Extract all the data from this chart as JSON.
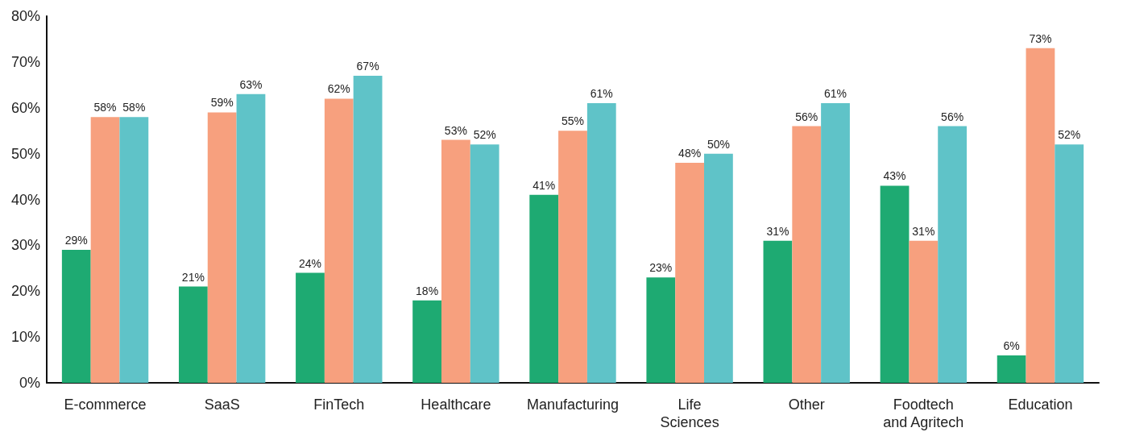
{
  "chart_data": {
    "type": "bar",
    "categories": [
      "E-commerce",
      "SaaS",
      "FinTech",
      "Healthcare",
      "Manufacturing",
      "Life\nSciences",
      "Other",
      "Foodtech\nand Agritech",
      "Education"
    ],
    "series": [
      {
        "color": "#1eaa72",
        "values": [
          29,
          21,
          24,
          18,
          41,
          23,
          31,
          43,
          6
        ],
        "value_labels": [
          "29%",
          "21%",
          "24%",
          "18%",
          "41%",
          "23%",
          "31%",
          "43%",
          "6%"
        ]
      },
      {
        "color": "#f7a07e",
        "values": [
          58,
          59,
          62,
          53,
          55,
          48,
          56,
          31,
          73
        ],
        "value_labels": [
          "58%",
          "59%",
          "62%",
          "53%",
          "55%",
          "48%",
          "56%",
          "31%",
          "73%"
        ]
      },
      {
        "color": "#5fc3c8",
        "values": [
          58,
          63,
          67,
          52,
          61,
          50,
          61,
          56,
          52
        ],
        "value_labels": [
          "58%",
          "63%",
          "67%",
          "52%",
          "61%",
          "50%",
          "61%",
          "56%",
          "52%"
        ]
      }
    ],
    "ylim": [
      0,
      80
    ],
    "yticks": [
      {
        "value": 0,
        "label": "0%"
      },
      {
        "value": 10,
        "label": "10%"
      },
      {
        "value": 20,
        "label": "20%"
      },
      {
        "value": 30,
        "label": "30%"
      },
      {
        "value": 40,
        "label": "40%"
      },
      {
        "value": 50,
        "label": "50%"
      },
      {
        "value": 60,
        "label": "60%"
      },
      {
        "value": 70,
        "label": "70%"
      },
      {
        "value": 80,
        "label": "80%"
      }
    ],
    "grid": false
  }
}
